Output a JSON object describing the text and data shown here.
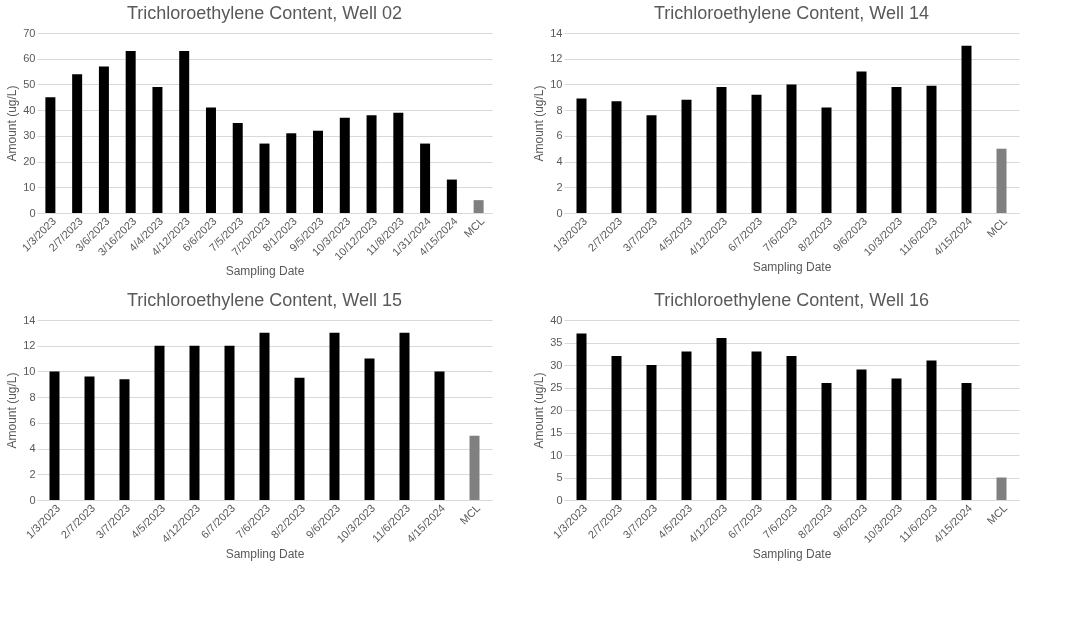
{
  "chart_data": [
    {
      "type": "bar",
      "title": "Trichloroethylene Content, Well 02",
      "xlabel": "Sampling Date",
      "ylabel": "Amount (ug/L)",
      "categories": [
        "1/3/2023",
        "2/7/2023",
        "3/6/2023",
        "3/16/2023",
        "4/4/2023",
        "4/12/2023",
        "6/6/2023",
        "7/5/2023",
        "7/20/2023",
        "8/1/2023",
        "9/5/2023",
        "10/3/2023",
        "10/12/2023",
        "11/8/2023",
        "1/31/2024",
        "4/15/2024",
        "MCL"
      ],
      "values": [
        45,
        54,
        57,
        63,
        49,
        63,
        41,
        35,
        27,
        31,
        32,
        37,
        38,
        39,
        27,
        13,
        5
      ],
      "colors": [
        "#000000",
        "#000000",
        "#000000",
        "#000000",
        "#000000",
        "#000000",
        "#000000",
        "#000000",
        "#000000",
        "#000000",
        "#000000",
        "#000000",
        "#000000",
        "#000000",
        "#000000",
        "#000000",
        "#808080"
      ],
      "ylim": [
        0,
        70
      ],
      "yticks": [
        0,
        10,
        20,
        30,
        40,
        50,
        60,
        70
      ],
      "grid": "y"
    },
    {
      "type": "bar",
      "title": "Trichloroethylene Content, Well 14",
      "xlabel": "Sampling Date",
      "ylabel": "Amount (ug/L)",
      "categories": [
        "1/3/2023",
        "2/7/2023",
        "3/7/2023",
        "4/5/2023",
        "4/12/2023",
        "6/7/2023",
        "7/6/2023",
        "8/2/2023",
        "9/6/2023",
        "10/3/2023",
        "11/6/2023",
        "4/15/2024",
        "MCL"
      ],
      "values": [
        8.9,
        8.7,
        7.6,
        8.8,
        9.8,
        9.2,
        10,
        8.2,
        11,
        9.8,
        9.9,
        13,
        5
      ],
      "colors": [
        "#000000",
        "#000000",
        "#000000",
        "#000000",
        "#000000",
        "#000000",
        "#000000",
        "#000000",
        "#000000",
        "#000000",
        "#000000",
        "#000000",
        "#808080"
      ],
      "ylim": [
        0,
        14
      ],
      "yticks": [
        0,
        2,
        4,
        6,
        8,
        10,
        12,
        14
      ],
      "grid": "y"
    },
    {
      "type": "bar",
      "title": "Trichloroethylene Content, Well 15",
      "xlabel": "Sampling Date",
      "ylabel": "Amount (ug/L)",
      "categories": [
        "1/3/2023",
        "2/7/2023",
        "3/7/2023",
        "4/5/2023",
        "4/12/2023",
        "6/7/2023",
        "7/6/2023",
        "8/2/2023",
        "9/6/2023",
        "10/3/2023",
        "11/6/2023",
        "4/15/2024",
        "MCL"
      ],
      "values": [
        10,
        9.6,
        9.4,
        12,
        12,
        12,
        13,
        9.5,
        13,
        11,
        13,
        10,
        5
      ],
      "colors": [
        "#000000",
        "#000000",
        "#000000",
        "#000000",
        "#000000",
        "#000000",
        "#000000",
        "#000000",
        "#000000",
        "#000000",
        "#000000",
        "#000000",
        "#808080"
      ],
      "ylim": [
        0,
        14
      ],
      "yticks": [
        0,
        2,
        4,
        6,
        8,
        10,
        12,
        14
      ],
      "grid": "y"
    },
    {
      "type": "bar",
      "title": "Trichloroethylene Content, Well 16",
      "xlabel": "Sampling Date",
      "ylabel": "Amount (ug/L)",
      "categories": [
        "1/3/2023",
        "2/7/2023",
        "3/7/2023",
        "4/5/2023",
        "4/12/2023",
        "6/7/2023",
        "7/6/2023",
        "8/2/2023",
        "9/6/2023",
        "10/3/2023",
        "11/6/2023",
        "4/15/2024",
        "MCL"
      ],
      "values": [
        37,
        32,
        30,
        33,
        36,
        33,
        32,
        26,
        29,
        27,
        31,
        26,
        5
      ],
      "colors": [
        "#000000",
        "#000000",
        "#000000",
        "#000000",
        "#000000",
        "#000000",
        "#000000",
        "#000000",
        "#000000",
        "#000000",
        "#000000",
        "#000000",
        "#808080"
      ],
      "ylim": [
        0,
        40
      ],
      "yticks": [
        0,
        5,
        10,
        15,
        20,
        25,
        30,
        35,
        40
      ],
      "grid": "y"
    }
  ]
}
